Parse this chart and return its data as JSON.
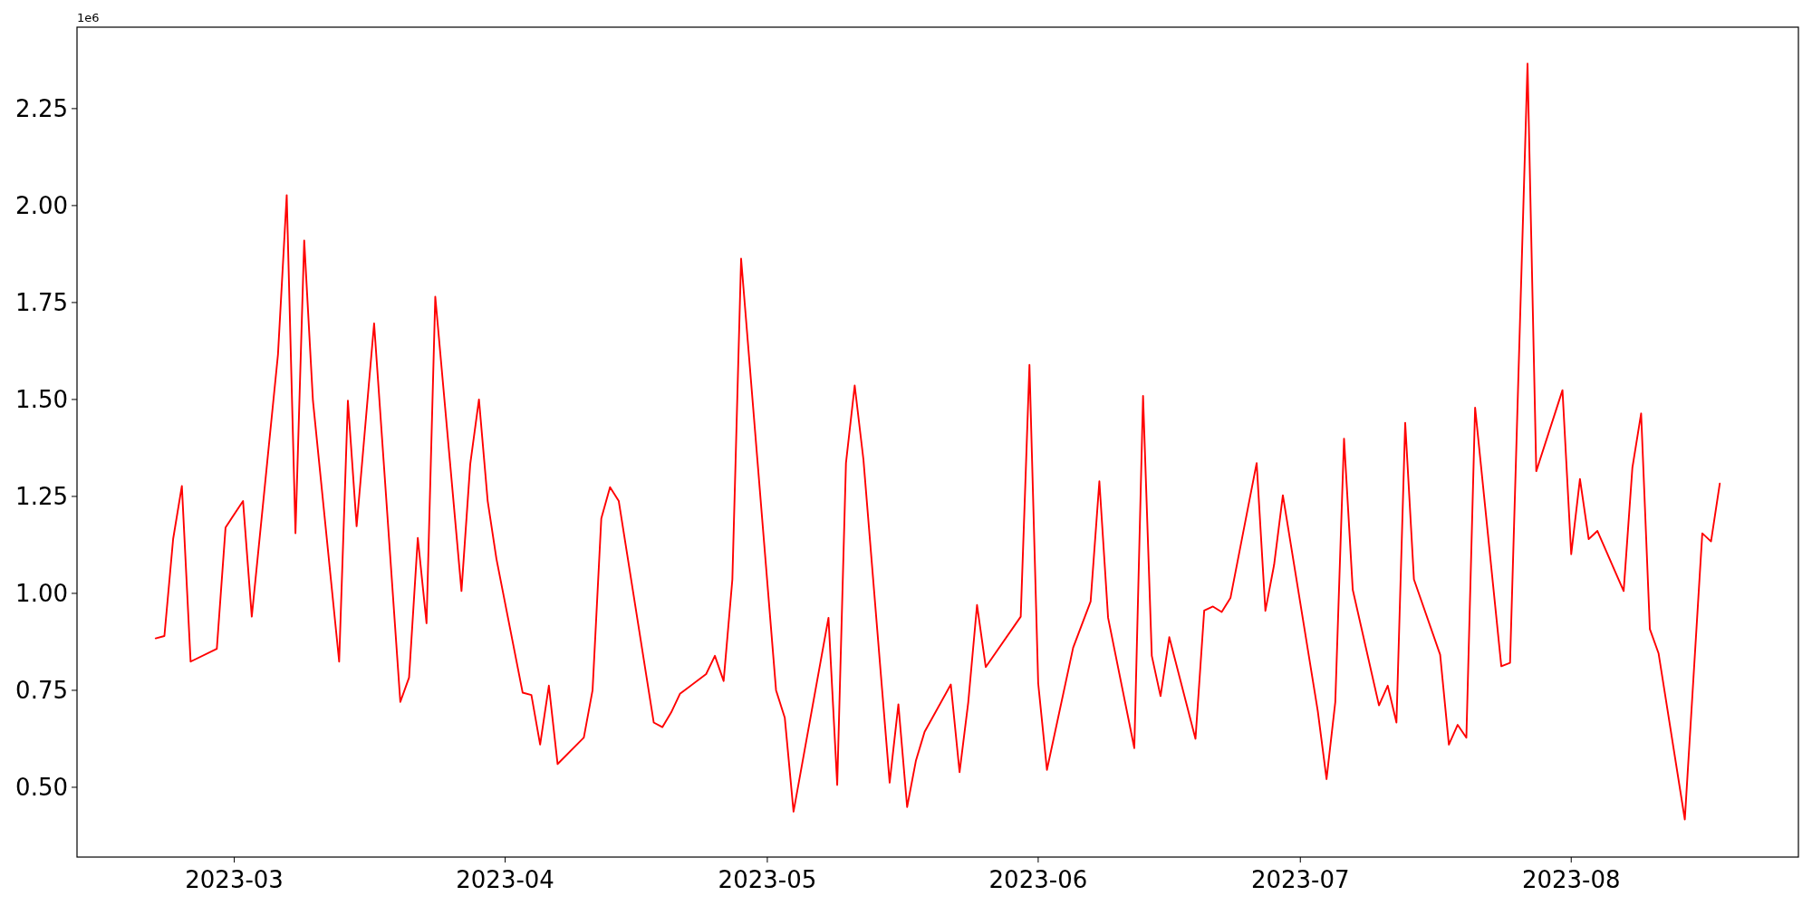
{
  "chart_data": {
    "type": "line",
    "annotations": [
      "1e6"
    ],
    "x": [
      "2023-02-20",
      "2023-02-21",
      "2023-02-22",
      "2023-02-23",
      "2023-02-24",
      "2023-02-27",
      "2023-02-28",
      "2023-03-02",
      "2023-03-03",
      "2023-03-06",
      "2023-03-07",
      "2023-03-08",
      "2023-03-09",
      "2023-03-10",
      "2023-03-13",
      "2023-03-14",
      "2023-03-15",
      "2023-03-17",
      "2023-03-20",
      "2023-03-21",
      "2023-03-22",
      "2023-03-23",
      "2023-03-24",
      "2023-03-27",
      "2023-03-28",
      "2023-03-29",
      "2023-03-30",
      "2023-03-31",
      "2023-04-03",
      "2023-04-04",
      "2023-04-05",
      "2023-04-06",
      "2023-04-07",
      "2023-04-10",
      "2023-04-11",
      "2023-04-12",
      "2023-04-13",
      "2023-04-14",
      "2023-04-18",
      "2023-04-19",
      "2023-04-20",
      "2023-04-21",
      "2023-04-24",
      "2023-04-25",
      "2023-04-26",
      "2023-04-27",
      "2023-04-28",
      "2023-05-02",
      "2023-05-03",
      "2023-05-04",
      "2023-05-08",
      "2023-05-09",
      "2023-05-10",
      "2023-05-11",
      "2023-05-12",
      "2023-05-15",
      "2023-05-16",
      "2023-05-17",
      "2023-05-18",
      "2023-05-19",
      "2023-05-22",
      "2023-05-23",
      "2023-05-24",
      "2023-05-25",
      "2023-05-26",
      "2023-05-30",
      "2023-05-31",
      "2023-06-01",
      "2023-06-02",
      "2023-06-05",
      "2023-06-07",
      "2023-06-08",
      "2023-06-09",
      "2023-06-12",
      "2023-06-13",
      "2023-06-14",
      "2023-06-15",
      "2023-06-16",
      "2023-06-19",
      "2023-06-20",
      "2023-06-21",
      "2023-06-22",
      "2023-06-23",
      "2023-06-26",
      "2023-06-27",
      "2023-06-28",
      "2023-06-29",
      "2023-07-03",
      "2023-07-04",
      "2023-07-05",
      "2023-07-06",
      "2023-07-07",
      "2023-07-10",
      "2023-07-11",
      "2023-07-12",
      "2023-07-13",
      "2023-07-14",
      "2023-07-17",
      "2023-07-18",
      "2023-07-19",
      "2023-07-20",
      "2023-07-21",
      "2023-07-24",
      "2023-07-25",
      "2023-07-27",
      "2023-07-28",
      "2023-07-31",
      "2023-08-01",
      "2023-08-02",
      "2023-08-03",
      "2023-08-04",
      "2023-08-07",
      "2023-08-08",
      "2023-08-09",
      "2023-08-10",
      "2023-08-11",
      "2023-08-14",
      "2023-08-16",
      "2023-08-17",
      "2023-08-18"
    ],
    "series": [
      {
        "color": "#ff0000",
        "values": [
          0.884,
          0.89,
          1.14,
          1.277,
          0.824,
          0.857,
          1.17,
          1.238,
          0.94,
          1.616,
          2.027,
          1.155,
          1.91,
          1.497,
          0.824,
          1.497,
          1.173,
          1.696,
          0.72,
          0.783,
          1.143,
          0.923,
          1.765,
          1.006,
          1.333,
          1.5,
          1.238,
          1.089,
          0.744,
          0.738,
          0.61,
          0.762,
          0.56,
          0.628,
          0.75,
          1.193,
          1.274,
          1.238,
          0.667,
          0.655,
          0.693,
          0.741,
          0.792,
          0.839,
          0.774,
          1.036,
          1.863,
          0.75,
          0.679,
          0.437,
          0.937,
          0.506,
          1.336,
          1.536,
          1.345,
          0.512,
          0.714,
          0.449,
          0.568,
          0.643,
          0.765,
          0.539,
          0.72,
          0.97,
          0.81,
          0.94,
          1.589,
          0.768,
          0.545,
          0.86,
          0.979,
          1.289,
          0.937,
          0.601,
          1.509,
          0.839,
          0.735,
          0.887,
          0.625,
          0.956,
          0.966,
          0.952,
          0.988,
          1.336,
          0.955,
          1.074,
          1.253,
          0.696,
          0.521,
          0.72,
          1.399,
          1.009,
          0.711,
          0.762,
          0.667,
          1.44,
          1.036,
          0.842,
          0.61,
          0.661,
          0.628,
          1.479,
          0.812,
          0.821,
          2.366,
          1.315,
          1.524,
          1.101,
          1.295,
          1.14,
          1.161,
          1.006,
          1.324,
          1.464,
          0.908,
          0.845,
          0.417,
          1.155,
          1.134,
          1.283
        ]
      }
    ],
    "xlim": [
      "2023-02-11",
      "2023-08-27"
    ],
    "xticks": [
      {
        "value": "2023-03-01",
        "label": "2023-03"
      },
      {
        "value": "2023-04-01",
        "label": "2023-04"
      },
      {
        "value": "2023-05-01",
        "label": "2023-05"
      },
      {
        "value": "2023-06-01",
        "label": "2023-06"
      },
      {
        "value": "2023-07-01",
        "label": "2023-07"
      },
      {
        "value": "2023-08-01",
        "label": "2023-08"
      }
    ],
    "ylim": [
      0.32,
      2.46
    ],
    "yticks": [
      {
        "value": 0.5,
        "label": "0.50"
      },
      {
        "value": 0.75,
        "label": "0.75"
      },
      {
        "value": 1.0,
        "label": "1.00"
      },
      {
        "value": 1.25,
        "label": "1.25"
      },
      {
        "value": 1.5,
        "label": "1.50"
      },
      {
        "value": 1.75,
        "label": "1.75"
      },
      {
        "value": 2.0,
        "label": "2.00"
      },
      {
        "value": 2.25,
        "label": "2.25"
      }
    ],
    "grid": false,
    "marker": "none",
    "line_style": "solid"
  }
}
